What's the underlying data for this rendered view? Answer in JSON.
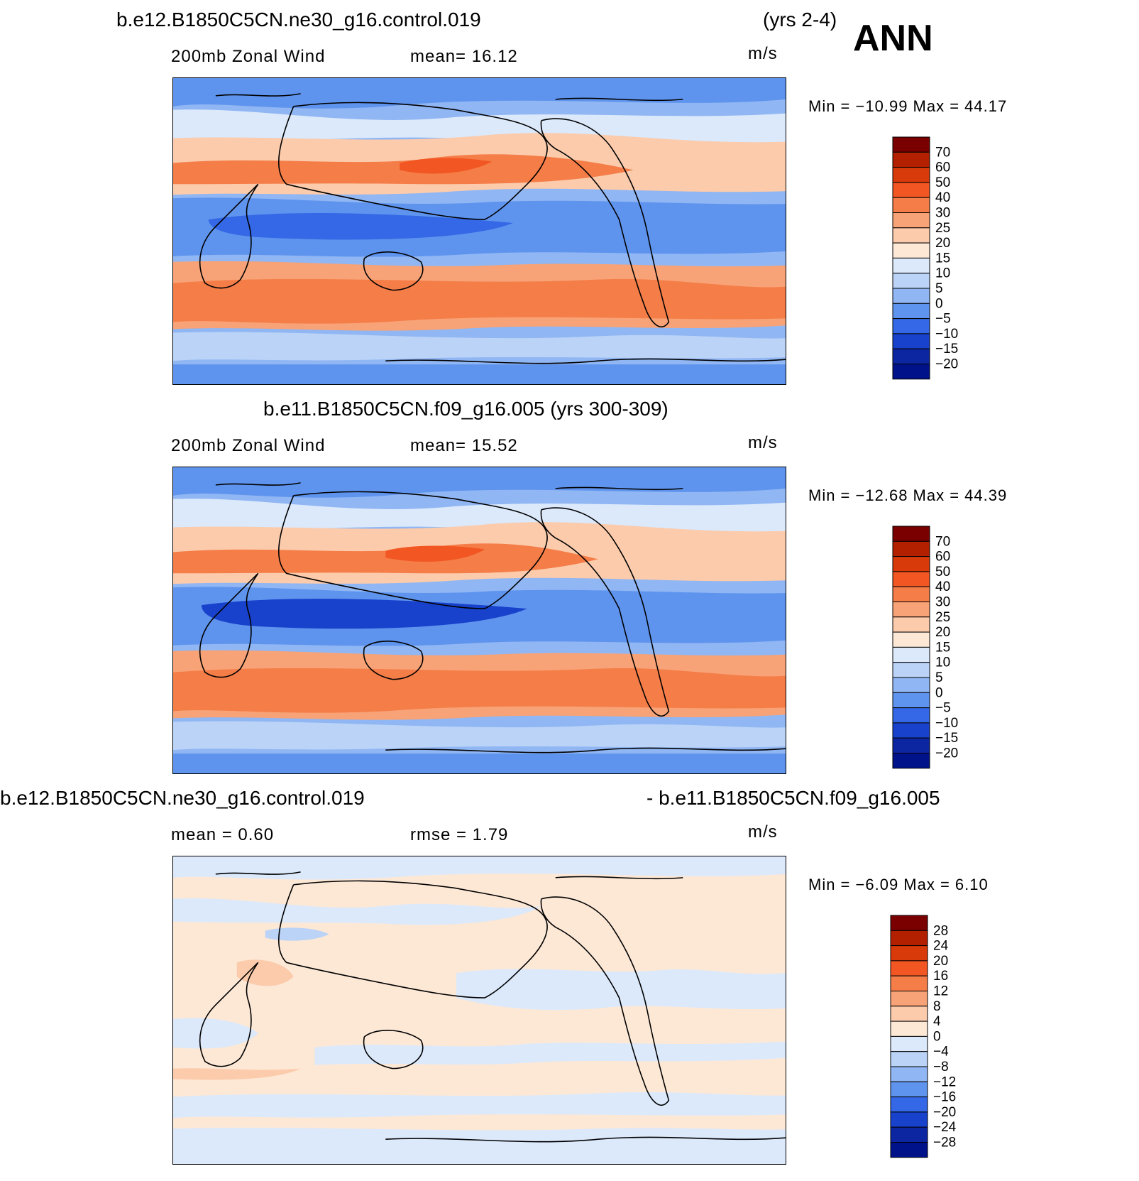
{
  "season": "ANN",
  "panels": [
    {
      "case": "b.e12.B1850C5CN.ne30_g16.control.019",
      "years": "(yrs 2-4)",
      "variable": "200mb  Zonal  Wind",
      "stat_text": "mean=   16.12",
      "units": "m/s",
      "minmax": "Min  =  −10.99  Max  =    44.17",
      "colorbar": {
        "levels": [
          "70",
          "60",
          "50",
          "40",
          "30",
          "25",
          "20",
          "15",
          "10",
          "5",
          "0",
          "−5",
          "−10",
          "−15",
          "−20"
        ],
        "colors": [
          "#7a0000",
          "#b22000",
          "#d83a0a",
          "#f25622",
          "#f57d48",
          "#f7a377",
          "#fbcbac",
          "#fde8d6",
          "#dbe9fb",
          "#bad3f7",
          "#90b6f3",
          "#5f94ee",
          "#3468e6",
          "#1942cc",
          "#0c26a1",
          "#00128a"
        ]
      }
    },
    {
      "case": "b.e11.B1850C5CN.f09_g16.005 (yrs 300-309)",
      "variable": "200mb  Zonal  Wind",
      "stat_text": "mean=   15.52",
      "units": "m/s",
      "minmax": "Min  =  −12.68  Max  =    44.39",
      "colorbar": {
        "levels": [
          "70",
          "60",
          "50",
          "40",
          "30",
          "25",
          "20",
          "15",
          "10",
          "5",
          "0",
          "−5",
          "−10",
          "−15",
          "−20"
        ],
        "colors": [
          "#7a0000",
          "#b22000",
          "#d83a0a",
          "#f25622",
          "#f57d48",
          "#f7a377",
          "#fbcbac",
          "#fde8d6",
          "#dbe9fb",
          "#bad3f7",
          "#90b6f3",
          "#5f94ee",
          "#3468e6",
          "#1942cc",
          "#0c26a1",
          "#00128a"
        ]
      }
    },
    {
      "case_left": "b.e12.B1850C5CN.ne30_g16.control.019",
      "case_right": "- b.e11.B1850C5CN.f09_g16.005",
      "mean_text": "mean  =     0.60",
      "rmse_text": "rmse  =     1.79",
      "units": "m/s",
      "minmax": "Min  =    −6.09  Max  =     6.10",
      "colorbar": {
        "levels": [
          "28",
          "24",
          "20",
          "16",
          "12",
          "8",
          "4",
          "0",
          "−4",
          "−8",
          "−12",
          "−16",
          "−20",
          "−24",
          "−28"
        ],
        "colors": [
          "#7a0000",
          "#b22000",
          "#d83a0a",
          "#f25622",
          "#f57d48",
          "#f7a377",
          "#fbcbac",
          "#fde8d6",
          "#dbe9fb",
          "#bad3f7",
          "#90b6f3",
          "#5f94ee",
          "#3468e6",
          "#1942cc",
          "#0c26a1",
          "#00128a"
        ]
      }
    }
  ]
}
